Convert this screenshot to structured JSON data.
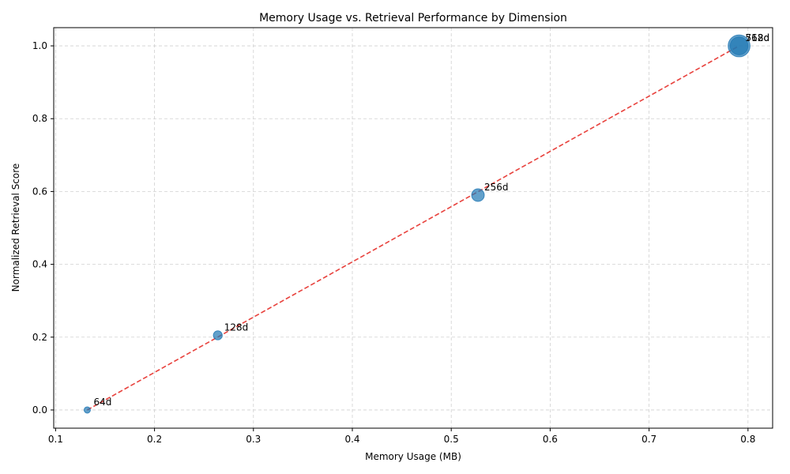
{
  "chart_data": {
    "type": "scatter",
    "title": "Memory Usage vs. Retrieval Performance by Dimension",
    "xlabel": "Memory Usage (MB)",
    "ylabel": "Normalized Retrieval Score",
    "xlim": [
      0.1,
      0.8
    ],
    "ylim": [
      0.0,
      1.0
    ],
    "xticks": [
      "0.1",
      "0.2",
      "0.3",
      "0.4",
      "0.5",
      "0.6",
      "0.7",
      "0.8"
    ],
    "yticks": [
      "0.0",
      "0.2",
      "0.4",
      "0.6",
      "0.8",
      "1.0"
    ],
    "grid": true,
    "points": [
      {
        "label": "64d",
        "x": 0.132,
        "y": 0.0
      },
      {
        "label": "128d",
        "x": 0.264,
        "y": 0.205
      },
      {
        "label": "256d",
        "x": 0.527,
        "y": 0.59
      },
      {
        "label": "512d",
        "x": 0.791,
        "y": 1.0
      },
      {
        "label": "768d",
        "x": 0.791,
        "y": 1.0
      }
    ],
    "marker_sizes": [
      1,
      2,
      4,
      8,
      12
    ],
    "trend_line": {
      "x": [
        0.132,
        0.791
      ],
      "y": [
        0.0,
        1.0
      ]
    },
    "colors": {
      "marker": "#1f77b4",
      "trend": "#e8413c",
      "grid": "#d0d0d0"
    }
  }
}
